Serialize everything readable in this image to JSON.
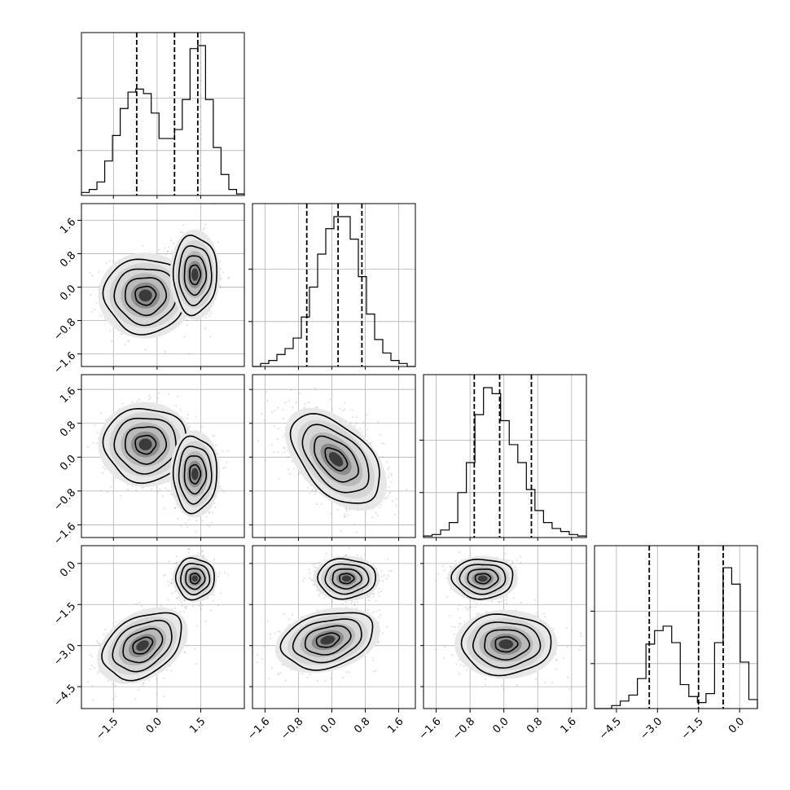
{
  "chart_data": {
    "type": "corner",
    "n_params": 4,
    "grid": true,
    "colors": {
      "line": "#000000",
      "sample_points": "#808080",
      "grid": "#b0b0b0"
    },
    "params": [
      {
        "range": [
          -2.6,
          3.0
        ],
        "ticks": [
          -1.5,
          0.0,
          1.5
        ],
        "tick_labels": [
          "−1.5",
          "0.0",
          "1.5"
        ]
      },
      {
        "range": [
          -1.9,
          2.0
        ],
        "ticks": [
          -1.6,
          -0.8,
          0.0,
          0.8,
          1.6
        ],
        "tick_labels": [
          "−1.6",
          "−0.8",
          "0.0",
          "0.8",
          "1.6"
        ]
      },
      {
        "range": [
          -1.9,
          1.95
        ],
        "ticks": [
          -1.6,
          -0.8,
          0.0,
          0.8,
          1.6
        ],
        "tick_labels": [
          "−1.6",
          "−0.8",
          "0.0",
          "0.8",
          "1.6"
        ]
      },
      {
        "range": [
          -5.3,
          0.65
        ],
        "ticks": [
          -4.5,
          -3.0,
          -1.5,
          0.0
        ],
        "tick_labels": [
          "−4.5",
          "−3.0",
          "−1.5",
          "0.0"
        ]
      }
    ],
    "marginals": [
      {
        "param": 0,
        "quantiles": [
          -0.7,
          0.6,
          1.4
        ],
        "bins_range": [
          -2.6,
          3.0
        ],
        "counts": [
          0.02,
          0.04,
          0.09,
          0.23,
          0.4,
          0.58,
          0.69,
          0.71,
          0.68,
          0.55,
          0.38,
          0.38,
          0.44,
          0.64,
          0.98,
          1.0,
          0.64,
          0.32,
          0.14,
          0.04,
          0.01
        ]
      },
      {
        "param": 1,
        "quantiles": [
          -0.6,
          0.15,
          0.72
        ],
        "bins_range": [
          -1.9,
          2.0
        ],
        "counts": [
          0.0,
          0.02,
          0.04,
          0.08,
          0.12,
          0.19,
          0.33,
          0.53,
          0.75,
          0.92,
          1.0,
          1.0,
          0.85,
          0.6,
          0.35,
          0.18,
          0.09,
          0.04,
          0.02,
          0.0
        ]
      },
      {
        "param": 2,
        "quantiles": [
          -0.7,
          -0.1,
          0.65
        ],
        "bins_range": [
          -1.9,
          1.95
        ],
        "counts": [
          0.01,
          0.02,
          0.05,
          0.1,
          0.3,
          0.5,
          0.82,
          1.0,
          0.96,
          0.78,
          0.62,
          0.5,
          0.32,
          0.18,
          0.1,
          0.06,
          0.04,
          0.02,
          0.01
        ]
      },
      {
        "param": 3,
        "quantiles": [
          -3.3,
          -1.5,
          -0.6
        ],
        "bins_range": [
          -5.3,
          0.65
        ],
        "counts": [
          0.0,
          0.0,
          0.02,
          0.05,
          0.09,
          0.2,
          0.43,
          0.52,
          0.55,
          0.44,
          0.16,
          0.08,
          0.04,
          0.1,
          0.44,
          0.94,
          0.83,
          0.31,
          0.06
        ]
      }
    ],
    "pairs": [
      {
        "x_param": 0,
        "y_param": 1,
        "components": [
          {
            "mean": [
              -0.4,
              -0.2
            ],
            "cov": [
              [
                0.5,
                0.0
              ],
              [
                0.0,
                0.2
              ]
            ],
            "weight": 0.5
          },
          {
            "mean": [
              1.3,
              0.3
            ],
            "cov": [
              [
                0.14,
                0.0
              ],
              [
                0.0,
                0.22
              ]
            ],
            "weight": 0.5
          }
        ]
      },
      {
        "x_param": 0,
        "y_param": 2,
        "components": [
          {
            "mean": [
              -0.4,
              0.3
            ],
            "cov": [
              [
                0.5,
                0.0
              ],
              [
                0.0,
                0.19
              ]
            ],
            "weight": 0.5
          },
          {
            "mean": [
              1.3,
              -0.4
            ],
            "cov": [
              [
                0.14,
                0.0
              ],
              [
                0.0,
                0.2
              ]
            ],
            "weight": 0.5
          }
        ]
      },
      {
        "x_param": 1,
        "y_param": 2,
        "components": [
          {
            "mean": [
              0.1,
              -0.05
            ],
            "cov": [
              [
                0.28,
                -0.14
              ],
              [
                -0.14,
                0.28
              ]
            ],
            "weight": 1.0
          }
        ]
      },
      {
        "x_param": 0,
        "y_param": 3,
        "components": [
          {
            "mean": [
              -0.5,
              -3.0
            ],
            "cov": [
              [
                0.46,
                0.15
              ],
              [
                0.15,
                0.37
              ]
            ],
            "weight": 0.5
          },
          {
            "mean": [
              1.3,
              -0.55
            ],
            "cov": [
              [
                0.11,
                0.0
              ],
              [
                0.0,
                0.14
              ]
            ],
            "weight": 0.5
          }
        ]
      },
      {
        "x_param": 1,
        "y_param": 3,
        "components": [
          {
            "mean": [
              -0.1,
              -2.8
            ],
            "cov": [
              [
                0.3,
                0.08
              ],
              [
                0.08,
                0.27
              ]
            ],
            "weight": 0.5
          },
          {
            "mean": [
              0.35,
              -0.55
            ],
            "cov": [
              [
                0.12,
                0.0
              ],
              [
                0.0,
                0.13
              ]
            ],
            "weight": 0.5
          }
        ]
      },
      {
        "x_param": 2,
        "y_param": 3,
        "components": [
          {
            "mean": [
              -0.5,
              -0.55
            ],
            "cov": [
              [
                0.13,
                0.0
              ],
              [
                0.0,
                0.13
              ]
            ],
            "weight": 0.5
          },
          {
            "mean": [
              0.05,
              -2.95
            ],
            "cov": [
              [
                0.28,
                0.0
              ],
              [
                0.0,
                0.3
              ]
            ],
            "weight": 0.5
          }
        ]
      }
    ]
  }
}
